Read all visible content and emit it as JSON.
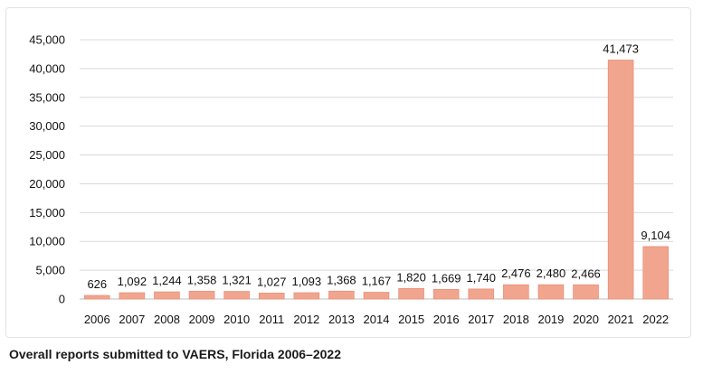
{
  "chart_data": {
    "type": "bar",
    "categories": [
      "2006",
      "2007",
      "2008",
      "2009",
      "2010",
      "2011",
      "2012",
      "2013",
      "2014",
      "2015",
      "2016",
      "2017",
      "2018",
      "2019",
      "2020",
      "2021",
      "2022"
    ],
    "values": [
      626,
      1092,
      1244,
      1358,
      1321,
      1027,
      1093,
      1368,
      1167,
      1820,
      1669,
      1740,
      2476,
      2480,
      2466,
      41473,
      9104
    ],
    "data_labels": [
      "626",
      "1,092",
      "1,244",
      "1,358",
      "1,321",
      "1,027",
      "1,093",
      "1,368",
      "1,167",
      "1,820",
      "1,669",
      "1,740",
      "2,476",
      "2,480",
      "2,466",
      "41,473",
      "9,104"
    ],
    "y_ticks": [
      0,
      5000,
      10000,
      15000,
      20000,
      25000,
      30000,
      35000,
      40000,
      45000
    ],
    "y_tick_labels": [
      "0",
      "5,000",
      "10,000",
      "15,000",
      "20,000",
      "25,000",
      "30,000",
      "35,000",
      "40,000",
      "45,000"
    ],
    "ylim": [
      0,
      45000
    ],
    "grid": true,
    "legend": "none",
    "bar_color": "#f2a58e",
    "bar_stroke": "#e8907a",
    "grid_color": "#d9d9d9"
  },
  "caption": "Overall reports submitted to VAERS, Florida 2006–2022"
}
